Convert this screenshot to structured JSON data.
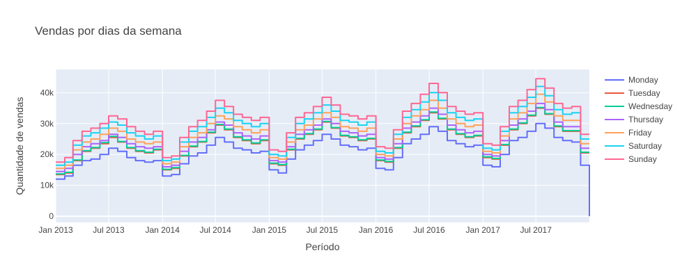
{
  "chart_data": {
    "type": "line",
    "title": "Vendas por dias da semana",
    "xlabel": "Período",
    "ylabel": "Quantidade de vendas",
    "x_range": [
      "2013-01-01",
      "2017-12-31"
    ],
    "ylim": [
      -2000,
      47500
    ],
    "x_ticks": [
      {
        "date": "2013-01-01",
        "label": "Jan 2013"
      },
      {
        "date": "2013-07-01",
        "label": "Jul 2013"
      },
      {
        "date": "2014-01-01",
        "label": "Jan 2014"
      },
      {
        "date": "2014-07-01",
        "label": "Jul 2014"
      },
      {
        "date": "2015-01-01",
        "label": "Jan 2015"
      },
      {
        "date": "2015-07-01",
        "label": "Jul 2015"
      },
      {
        "date": "2016-01-01",
        "label": "Jan 2016"
      },
      {
        "date": "2016-07-01",
        "label": "Jul 2016"
      },
      {
        "date": "2017-01-01",
        "label": "Jan 2017"
      },
      {
        "date": "2017-07-01",
        "label": "Jul 2017"
      }
    ],
    "y_ticks": [
      {
        "value": 0,
        "label": "0"
      },
      {
        "value": 10000,
        "label": "10k"
      },
      {
        "value": 20000,
        "label": "20k"
      },
      {
        "value": 30000,
        "label": "30k"
      },
      {
        "value": 40000,
        "label": "40k"
      }
    ],
    "grid": true,
    "legend_position": "top-right",
    "background_color": "#e5ecf6",
    "x": [
      "2013-01",
      "2013-02",
      "2013-03",
      "2013-04",
      "2013-05",
      "2013-06",
      "2013-07",
      "2013-08",
      "2013-09",
      "2013-10",
      "2013-11",
      "2013-12",
      "2014-01",
      "2014-02",
      "2014-03",
      "2014-04",
      "2014-05",
      "2014-06",
      "2014-07",
      "2014-08",
      "2014-09",
      "2014-10",
      "2014-11",
      "2014-12",
      "2015-01",
      "2015-02",
      "2015-03",
      "2015-04",
      "2015-05",
      "2015-06",
      "2015-07",
      "2015-08",
      "2015-09",
      "2015-10",
      "2015-11",
      "2015-12",
      "2016-01",
      "2016-02",
      "2016-03",
      "2016-04",
      "2016-05",
      "2016-06",
      "2016-07",
      "2016-08",
      "2016-09",
      "2016-10",
      "2016-11",
      "2016-12",
      "2017-01",
      "2017-02",
      "2017-03",
      "2017-04",
      "2017-05",
      "2017-06",
      "2017-07",
      "2017-08",
      "2017-09",
      "2017-10",
      "2017-11",
      "2017-12"
    ],
    "series": [
      {
        "name": "Monday",
        "color": "#636efa",
        "values": [
          12000,
          13000,
          16500,
          18000,
          18500,
          20000,
          22000,
          21000,
          19000,
          18000,
          17500,
          18000,
          13000,
          13500,
          17000,
          19500,
          20500,
          23000,
          25500,
          24000,
          22000,
          21500,
          20500,
          21000,
          15000,
          14000,
          18500,
          21500,
          23000,
          24500,
          26500,
          25000,
          23000,
          22500,
          21500,
          22000,
          15500,
          15000,
          19000,
          23500,
          25000,
          26500,
          29000,
          27500,
          24500,
          23500,
          22500,
          23000,
          16500,
          16000,
          20000,
          24500,
          25500,
          27500,
          30000,
          28500,
          25500,
          24500,
          24000,
          16500
        ]
      },
      {
        "name": "Tuesday",
        "color": "#ef553b",
        "values": [
          13500,
          14000,
          18000,
          21000,
          22000,
          23500,
          25500,
          24000,
          22000,
          21000,
          20500,
          21500,
          15000,
          15500,
          19500,
          22500,
          24000,
          27000,
          29500,
          28000,
          25500,
          24500,
          23500,
          24500,
          17000,
          16500,
          21500,
          25000,
          26500,
          28000,
          30500,
          28500,
          26000,
          25500,
          24500,
          25000,
          18000,
          17500,
          22000,
          27000,
          29000,
          31000,
          33500,
          31500,
          28000,
          26500,
          25500,
          26000,
          19000,
          18500,
          23000,
          28000,
          30000,
          32500,
          35000,
          33000,
          29000,
          27500,
          27500,
          20500
        ]
      },
      {
        "name": "Wednesday",
        "color": "#00cc96",
        "values": [
          13700,
          14200,
          18200,
          21200,
          22200,
          23800,
          25800,
          24200,
          22200,
          21200,
          20700,
          21700,
          15200,
          15700,
          19700,
          22700,
          24200,
          27200,
          29700,
          28200,
          25700,
          24700,
          23700,
          24700,
          17200,
          16700,
          21700,
          25200,
          26700,
          28200,
          30700,
          28700,
          26200,
          25700,
          24700,
          25200,
          18200,
          17700,
          22200,
          27200,
          29200,
          31200,
          33700,
          31700,
          28200,
          26700,
          25700,
          26200,
          19200,
          18700,
          23200,
          28200,
          30200,
          32700,
          35200,
          33200,
          29200,
          27700,
          27700,
          20700
        ]
      },
      {
        "name": "Thursday",
        "color": "#ab63fa",
        "values": [
          14500,
          15500,
          20000,
          22500,
          23500,
          24500,
          26500,
          25500,
          23500,
          22500,
          22000,
          22500,
          16000,
          16500,
          21000,
          24000,
          25500,
          28000,
          30500,
          29500,
          27000,
          26000,
          25000,
          26000,
          18000,
          17500,
          22500,
          26500,
          28000,
          29500,
          31500,
          30000,
          27500,
          27000,
          26000,
          26500,
          19000,
          18500,
          23500,
          28500,
          30500,
          32500,
          35000,
          33000,
          29500,
          28000,
          27000,
          27500,
          20000,
          19500,
          24500,
          29500,
          31500,
          34000,
          36500,
          34500,
          30500,
          29000,
          29000,
          22000
        ]
      },
      {
        "name": "Friday",
        "color": "#ffa15a",
        "values": [
          15500,
          16500,
          21500,
          24000,
          25000,
          26500,
          28500,
          27500,
          25000,
          24000,
          23500,
          24000,
          17000,
          17500,
          22500,
          25500,
          27000,
          30000,
          32500,
          31500,
          29000,
          28000,
          27000,
          28000,
          19000,
          18500,
          24000,
          28000,
          29500,
          31500,
          33500,
          32000,
          29000,
          28500,
          27500,
          28500,
          20000,
          19500,
          25000,
          30000,
          32500,
          34500,
          37500,
          35000,
          31500,
          30000,
          29000,
          29500,
          21000,
          20500,
          26000,
          31500,
          33500,
          36500,
          39500,
          37000,
          32500,
          31000,
          31000,
          23500
        ]
      },
      {
        "name": "Saturday",
        "color": "#19d3f3",
        "values": [
          16500,
          17500,
          23000,
          26000,
          27000,
          28500,
          30500,
          29500,
          27000,
          26000,
          25000,
          26000,
          18000,
          18500,
          24000,
          27500,
          29000,
          32000,
          35000,
          33500,
          31000,
          30000,
          29000,
          30000,
          20000,
          19500,
          25500,
          30000,
          31500,
          33500,
          36000,
          34000,
          31000,
          30500,
          29500,
          30500,
          21000,
          20500,
          26500,
          32000,
          34500,
          37000,
          40000,
          37500,
          33500,
          32000,
          31000,
          31500,
          22000,
          21500,
          27500,
          33500,
          35500,
          38500,
          42000,
          39000,
          34500,
          33000,
          33500,
          25000
        ]
      },
      {
        "name": "Sunday",
        "color": "#ff6692",
        "values": [
          17500,
          19000,
          24500,
          27500,
          28500,
          30000,
          32500,
          31500,
          29000,
          27500,
          26500,
          27500,
          19000,
          19500,
          25500,
          29000,
          31000,
          34000,
          37500,
          35500,
          33000,
          32000,
          31000,
          32000,
          21500,
          21000,
          27000,
          32000,
          33500,
          35500,
          38500,
          36000,
          33000,
          32500,
          31500,
          32500,
          22500,
          22000,
          28000,
          34000,
          36500,
          39500,
          43000,
          40000,
          35500,
          34000,
          33000,
          33500,
          23500,
          23000,
          29000,
          35500,
          37500,
          41000,
          44500,
          41500,
          36500,
          35000,
          35500,
          26500
        ]
      }
    ]
  }
}
